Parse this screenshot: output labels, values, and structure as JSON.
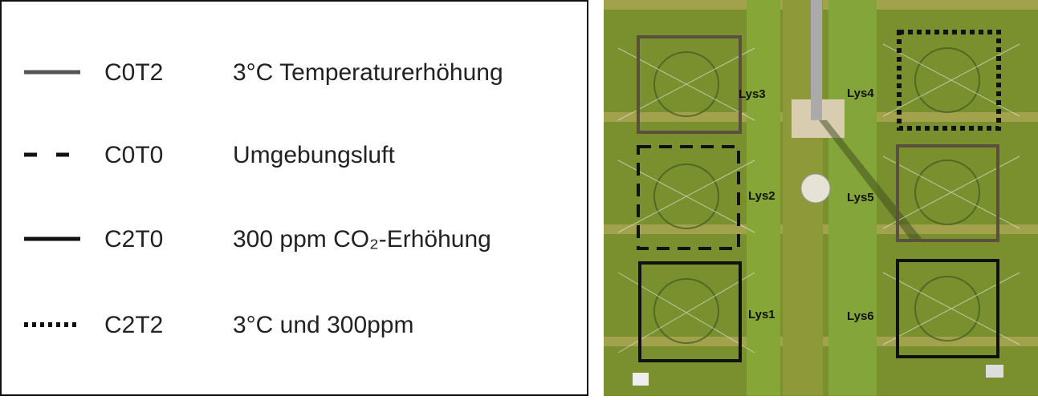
{
  "legend": {
    "items": [
      {
        "code": "C0T2",
        "description": "3°C Temperaturerhöhung",
        "line_style": "solid",
        "color": "#555555"
      },
      {
        "code": "C0T0",
        "description": "Umgebungsluft",
        "line_style": "dashed",
        "color": "#111111"
      },
      {
        "code": "C2T0",
        "description": "300 ppm CO₂-Erhöhung",
        "line_style": "solid",
        "color": "#111111"
      },
      {
        "code": "C2T2",
        "description": "3°C und 300ppm",
        "line_style": "dotted",
        "color": "#111111"
      }
    ]
  },
  "photo": {
    "labels": [
      "Lys1",
      "Lys2",
      "Lys3",
      "Lys4",
      "Lys5",
      "Lys6"
    ]
  }
}
